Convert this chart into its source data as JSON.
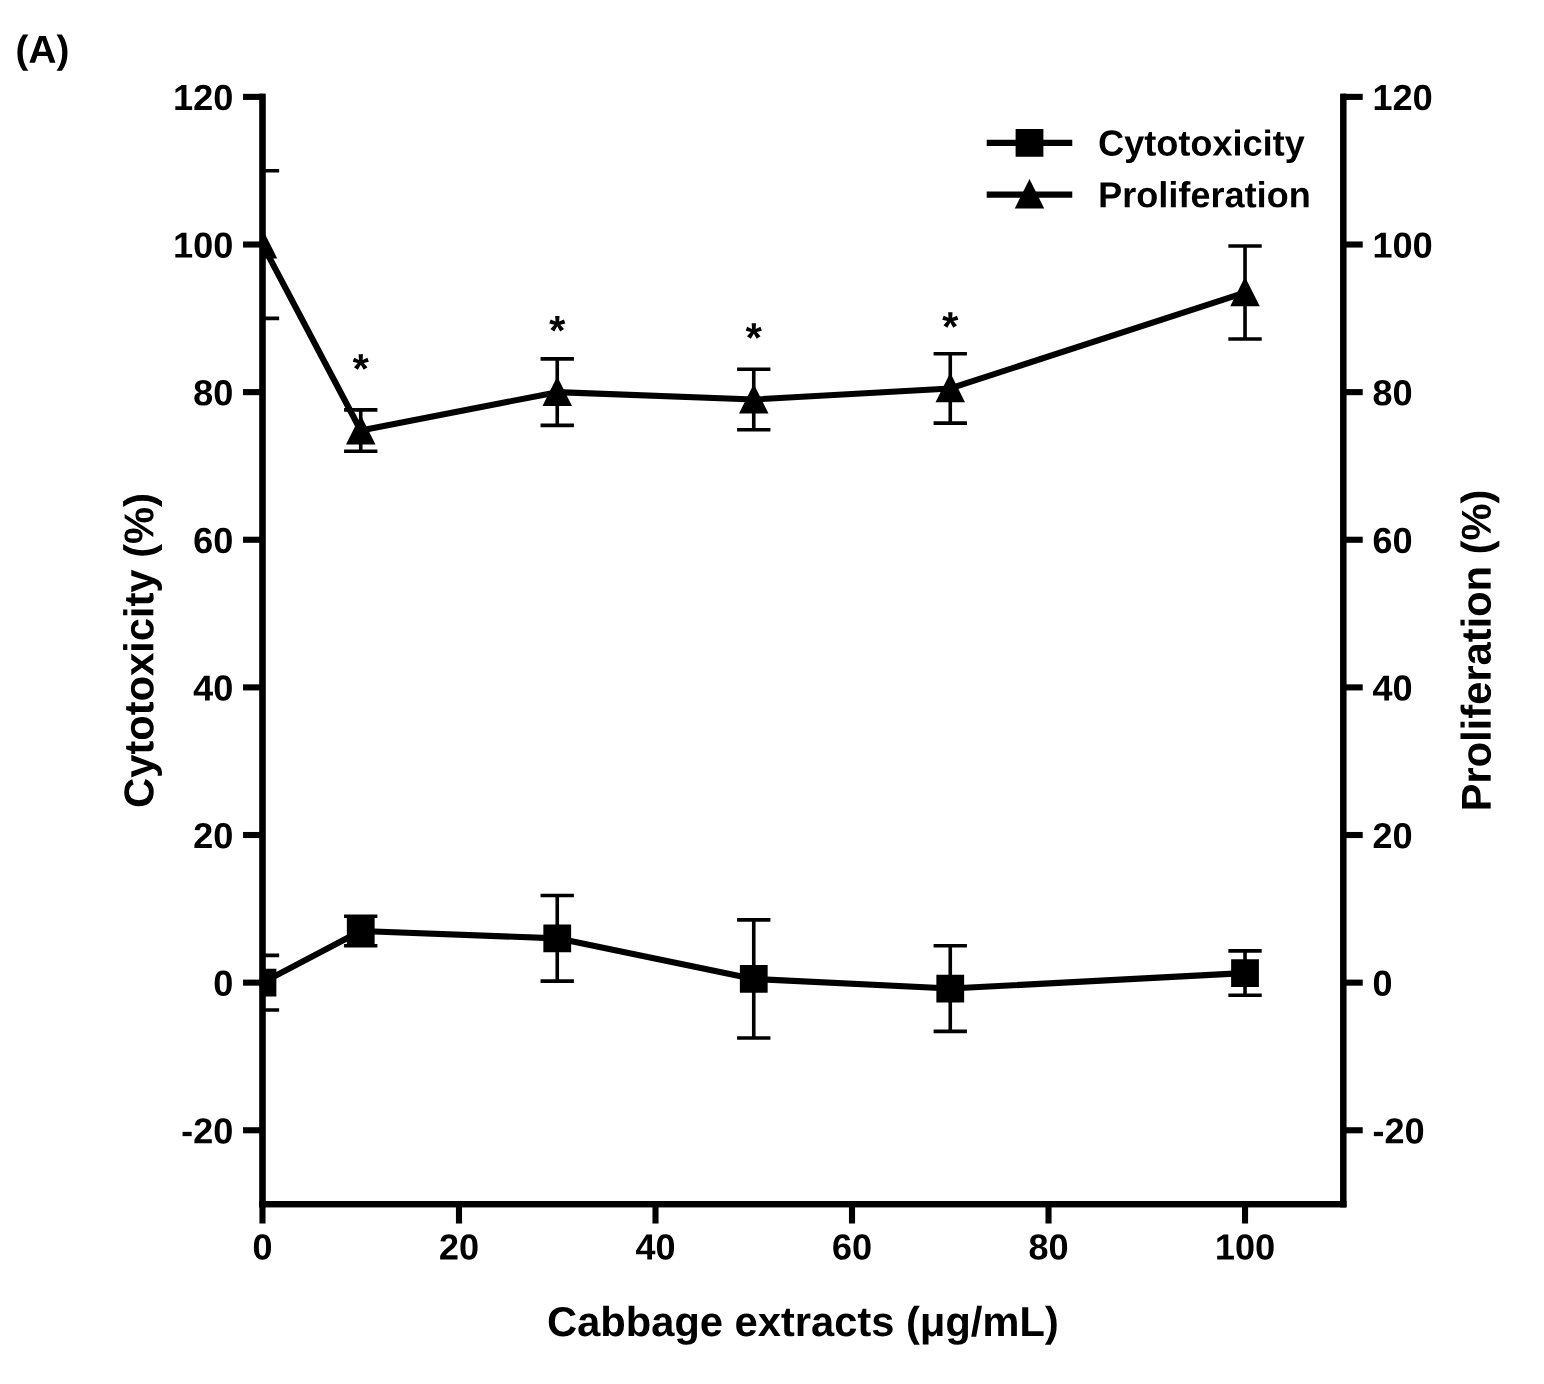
{
  "chart_data": {
    "type": "line",
    "title": "(A)",
    "xlabel": "Cabbage extracts (μg/mL)",
    "ylabel": "Cytotoxicity (%)",
    "y2label": "Proliferation (%)",
    "x": [
      0,
      10,
      30,
      50,
      70,
      100
    ],
    "series": [
      {
        "name": "Cytotoxicity",
        "color": "#000000",
        "marker": "square",
        "values": [
          0,
          7,
          6,
          0.5,
          -0.8,
          1.3
        ],
        "errors": [
          3.7,
          2,
          5.8,
          8,
          5.8,
          3
        ]
      },
      {
        "name": "Proliferation",
        "color": "#000000",
        "marker": "triangle",
        "values": [
          100,
          74.8,
          80,
          79,
          80.5,
          93.5
        ],
        "errors": [
          10,
          2.8,
          4.5,
          4.1,
          4.7,
          6.3
        ]
      }
    ],
    "annotations": [
      {
        "text": "*",
        "x": 10,
        "y": 74.8
      },
      {
        "text": "*",
        "x": 30,
        "y": 80
      },
      {
        "text": "*",
        "x": 50,
        "y": 79
      },
      {
        "text": "*",
        "x": 70,
        "y": 80.5
      }
    ],
    "xlim": [
      0,
      110
    ],
    "xticks": [
      0,
      20,
      40,
      60,
      80,
      100
    ],
    "ylim": [
      -30,
      120
    ],
    "yticks": [
      -20,
      0,
      20,
      40,
      60,
      80,
      100,
      120
    ],
    "y2lim": [
      -30,
      120
    ],
    "y2ticks": [
      -20,
      0,
      20,
      40,
      60,
      80,
      100,
      120
    ],
    "legend": "top right",
    "grid": false
  }
}
